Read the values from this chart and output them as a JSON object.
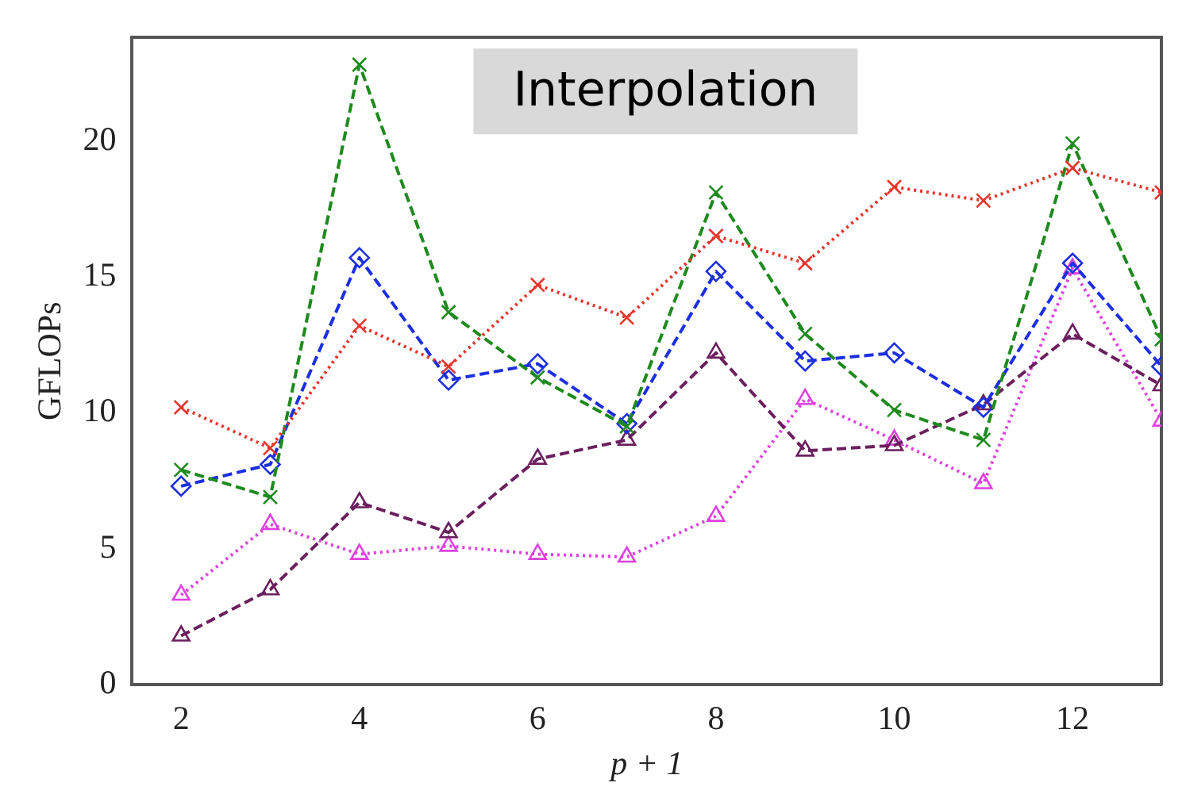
{
  "chart_data": {
    "type": "line",
    "xlabel": "p + 1",
    "ylabel": "GFLOPs",
    "annotations": [
      "Interpolation"
    ],
    "x": [
      2,
      3,
      4,
      5,
      6,
      7,
      8,
      9,
      10,
      11,
      12,
      13
    ],
    "xlim": [
      1.45,
      13
    ],
    "xticks": [
      2,
      4,
      6,
      8,
      10,
      12
    ],
    "ylim": [
      0,
      23.8
    ],
    "yticks": [
      0,
      5,
      10,
      15,
      20
    ],
    "grid": false,
    "legend": false,
    "series": [
      {
        "color": "#e8342c",
        "marker": "cross",
        "line_style": "dotted",
        "values": [
          10.2,
          8.7,
          13.2,
          11.7,
          14.7,
          13.5,
          16.5,
          15.5,
          18.3,
          17.8,
          19.0,
          18.1
        ]
      },
      {
        "color": "#1e8a1e",
        "marker": "cross",
        "line_style": "dashed",
        "values": [
          7.9,
          6.9,
          22.8,
          13.7,
          11.3,
          9.5,
          18.1,
          12.9,
          10.1,
          9.0,
          19.9,
          12.7
        ]
      },
      {
        "color": "#1c2fe0",
        "marker": "diamond",
        "line_style": "dashed",
        "values": [
          7.3,
          8.1,
          15.7,
          11.2,
          11.8,
          9.6,
          15.2,
          11.9,
          12.2,
          10.2,
          15.5,
          11.7
        ]
      },
      {
        "color": "#6b1f5e",
        "marker": "triangle",
        "line_style": "dashed",
        "values": [
          1.8,
          3.5,
          6.7,
          5.6,
          8.3,
          9.0,
          12.2,
          8.6,
          8.8,
          10.3,
          12.9,
          11.0
        ]
      },
      {
        "color": "#e040e0",
        "marker": "triangle",
        "line_style": "dotted",
        "values": [
          3.3,
          5.9,
          4.8,
          5.1,
          4.8,
          4.7,
          6.2,
          10.5,
          9.0,
          7.4,
          15.3,
          9.7
        ]
      }
    ]
  }
}
